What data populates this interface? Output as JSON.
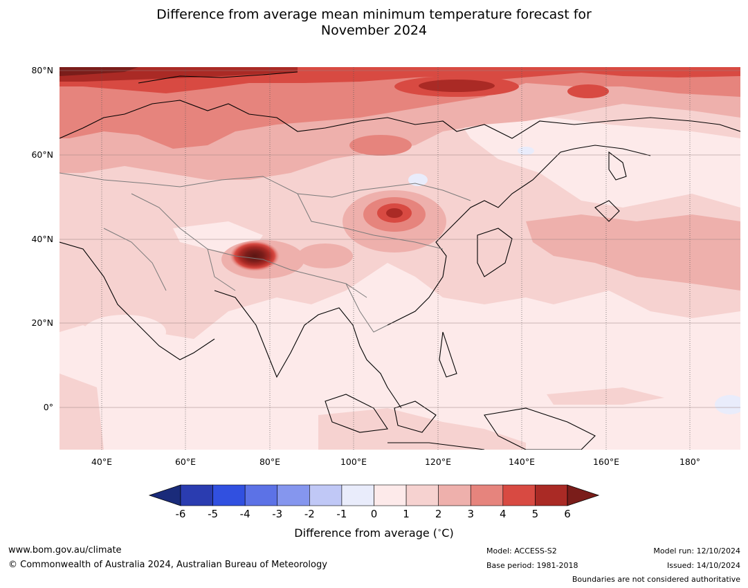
{
  "title_line1": "Difference from average mean minimum temperature forecast for",
  "title_line2": "November 2024",
  "map": {
    "lat_labels": [
      "80°N",
      "60°N",
      "40°N",
      "20°N",
      "0°"
    ],
    "lon_labels": [
      "40°E",
      "60°E",
      "80°E",
      "100°E",
      "120°E",
      "140°E",
      "160°E",
      "180°"
    ],
    "extent": {
      "lon_min": 30,
      "lon_max": 192,
      "lat_min": -10,
      "lat_max": 80
    }
  },
  "colorbar": {
    "ticks": [
      "-6",
      "-5",
      "-4",
      "-3",
      "-2",
      "-1",
      "0",
      "1",
      "2",
      "3",
      "4",
      "5",
      "6"
    ],
    "colors": [
      "#1a2b7a",
      "#2a3cb0",
      "#3150e0",
      "#5c72e6",
      "#8596ee",
      "#c0c8f6",
      "#e9ecfb",
      "#fdeaea",
      "#f6d2d0",
      "#eeb0ac",
      "#e6847d",
      "#d84a42",
      "#aa2a25",
      "#7a1d1a"
    ],
    "label": "Difference from average (",
    "label_unit": "C)",
    "label_degree": "∘"
  },
  "footer": {
    "website": "www.bom.gov.au/climate",
    "copyright": "© Commonwealth of Australia 2024, Australian Bureau of Meteorology",
    "model": "Model: ACCESS-S2",
    "base_period": "Base period: 1981-2018",
    "model_run": "Model run: 12/10/2024",
    "issued": "Issued: 14/10/2024",
    "boundaries_note": "Boundaries are not considered authoritative"
  }
}
